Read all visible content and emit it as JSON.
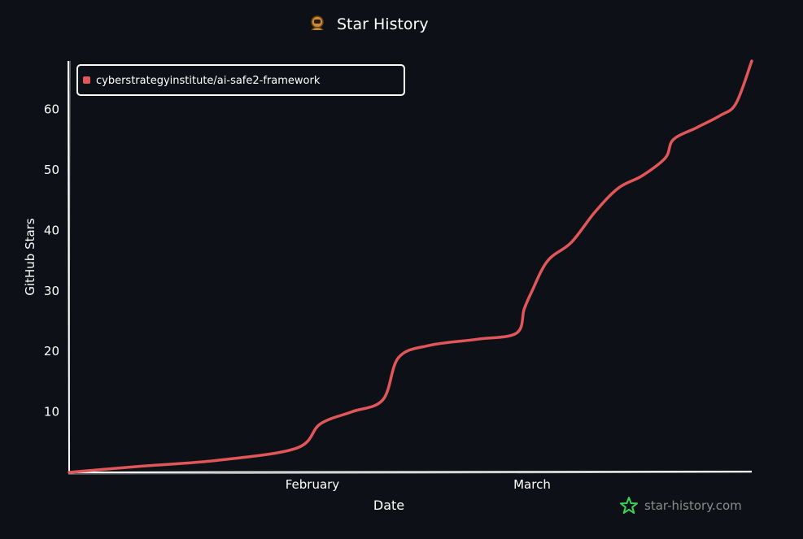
{
  "chart_data": {
    "type": "line",
    "title": "Star History",
    "xlabel": "Date",
    "ylabel": "GitHub Stars",
    "x_ticks": [
      "February",
      "March"
    ],
    "y_ticks": [
      10,
      20,
      30,
      40,
      50,
      60
    ],
    "ylim": [
      0,
      68
    ],
    "legend_position": "top-left",
    "grid": false,
    "series": [
      {
        "name": "cyberstrategyinstitute/ai-safe2-framework",
        "color": "#e15759",
        "points": [
          {
            "x": "2026-01-01",
            "y": 0
          },
          {
            "x": "2026-01-10",
            "y": 1
          },
          {
            "x": "2026-01-20",
            "y": 2
          },
          {
            "x": "2026-01-30",
            "y": 4
          },
          {
            "x": "2026-02-02",
            "y": 8
          },
          {
            "x": "2026-02-06",
            "y": 10
          },
          {
            "x": "2026-02-10",
            "y": 12
          },
          {
            "x": "2026-02-12",
            "y": 19
          },
          {
            "x": "2026-02-16",
            "y": 21
          },
          {
            "x": "2026-02-22",
            "y": 22
          },
          {
            "x": "2026-02-27",
            "y": 23
          },
          {
            "x": "2026-02-28",
            "y": 27
          },
          {
            "x": "2026-03-01",
            "y": 30
          },
          {
            "x": "2026-03-03",
            "y": 35
          },
          {
            "x": "2026-03-06",
            "y": 38
          },
          {
            "x": "2026-03-09",
            "y": 43
          },
          {
            "x": "2026-03-12",
            "y": 47
          },
          {
            "x": "2026-03-15",
            "y": 49
          },
          {
            "x": "2026-03-18",
            "y": 52
          },
          {
            "x": "2026-03-19",
            "y": 55
          },
          {
            "x": "2026-03-22",
            "y": 57
          },
          {
            "x": "2026-03-25",
            "y": 59
          },
          {
            "x": "2026-03-27",
            "y": 61
          },
          {
            "x": "2026-03-29",
            "y": 68
          }
        ]
      }
    ]
  },
  "watermark": {
    "text": "star-history.com",
    "icon": "star-history-logo-icon",
    "color": "#3ad353"
  },
  "title_icon": "star-history-mascot-icon",
  "colors": {
    "background": "#0d1117",
    "axis": "#ffffff",
    "text": "#ffffff",
    "watermark_text": "#8b8b8b"
  }
}
